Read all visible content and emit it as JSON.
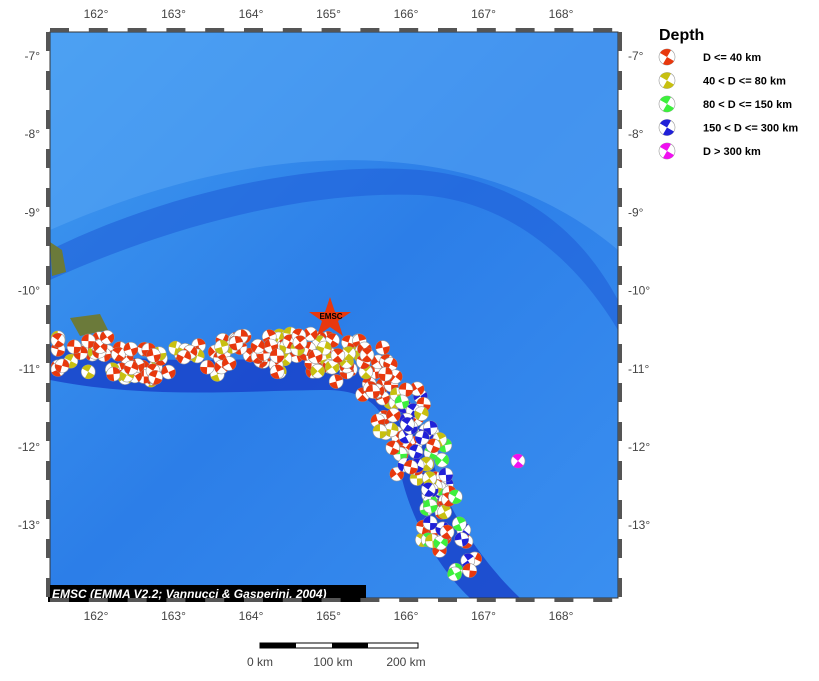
{
  "map": {
    "lon_labels": [
      "162°",
      "163°",
      "164°",
      "165°",
      "166°",
      "167°",
      "168°"
    ],
    "lat_labels": [
      "-7°",
      "-8°",
      "-9°",
      "-10°",
      "-11°",
      "-12°",
      "-13°"
    ],
    "marker": "EMSC",
    "credit": "EMSC (EMMA V2.2; Vannucci & Gasperini, 2004)"
  },
  "legend": {
    "title": "Depth",
    "items": [
      {
        "label": "D <= 40 km",
        "color": "#e8380d"
      },
      {
        "label": "40 < D <= 80 km",
        "color": "#c8c010"
      },
      {
        "label": "80 < D <= 150 km",
        "color": "#3cf03c"
      },
      {
        "label": "150 < D <= 300 km",
        "color": "#2020d8"
      },
      {
        "label": "D > 300 km",
        "color": "#f010f0"
      }
    ]
  },
  "scale_bar": {
    "labels": [
      "0 km",
      "100 km",
      "200 km"
    ]
  }
}
